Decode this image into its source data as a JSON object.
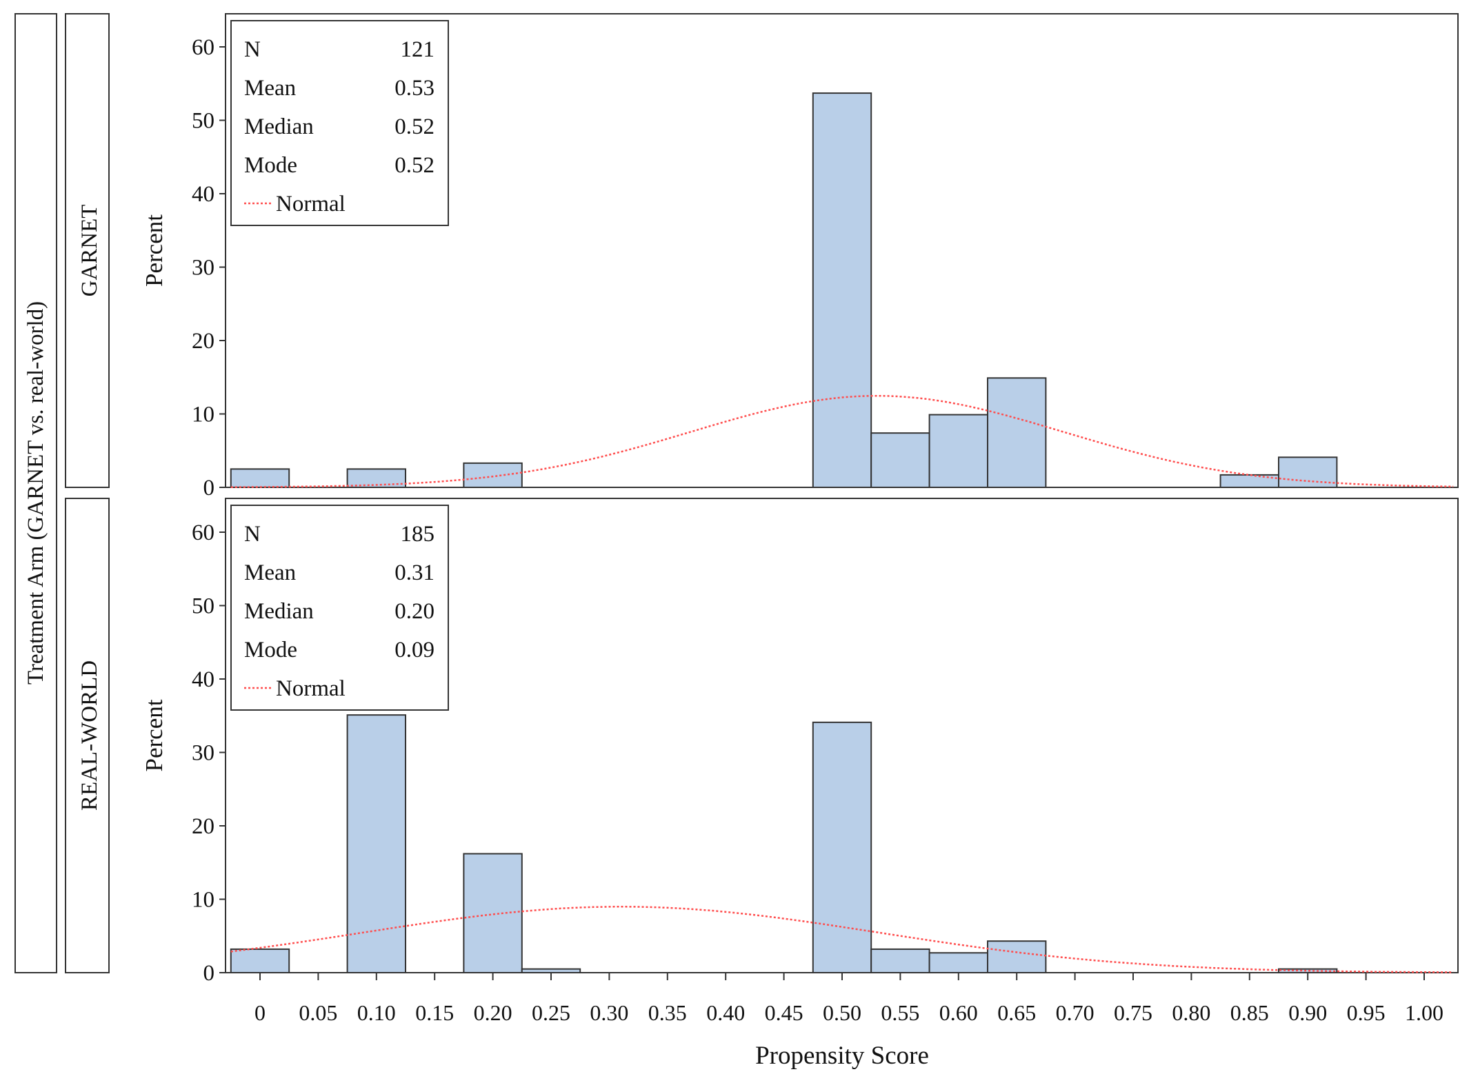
{
  "chart_data": {
    "type": "bar",
    "subtype": "histogram-panel",
    "xlabel": "Propensity Score",
    "ylabel": "Percent",
    "row_label": "Treatment Arm (GARNET vs. real-world)",
    "xlim": [
      -0.025,
      1.025
    ],
    "ylim": [
      0,
      65
    ],
    "bin_width": 0.05,
    "x_ticks": [
      "0",
      "0.05",
      "0.10",
      "0.15",
      "0.20",
      "0.25",
      "0.30",
      "0.35",
      "0.40",
      "0.45",
      "0.50",
      "0.55",
      "0.60",
      "0.65",
      "0.70",
      "0.75",
      "0.80",
      "0.85",
      "0.90",
      "0.95",
      "1.00"
    ],
    "y_ticks": [
      0,
      10,
      20,
      30,
      40,
      50,
      60
    ],
    "colors": {
      "bar_fill": "#b9cfe8",
      "bar_edge": "#333333",
      "normal_curve": "#ff4d4d"
    },
    "grid": false,
    "legend_placement": "top-left",
    "legend_curve_label": "Normal",
    "panels": [
      {
        "name": "GARNET",
        "stats": [
          {
            "label": "N",
            "value": "121"
          },
          {
            "label": "Mean",
            "value": "0.53"
          },
          {
            "label": "Median",
            "value": "0.52"
          },
          {
            "label": "Mode",
            "value": "0.52"
          }
        ],
        "bins": [
          0.0,
          0.1,
          0.2,
          0.5,
          0.55,
          0.6,
          0.65,
          0.85,
          0.9
        ],
        "values": [
          2.5,
          2.5,
          3.3,
          53.7,
          7.4,
          9.9,
          14.9,
          1.7,
          4.1
        ],
        "normal": {
          "mean": 0.53,
          "sd": 0.16
        }
      },
      {
        "name": "REAL-WORLD",
        "stats": [
          {
            "label": "N",
            "value": "185"
          },
          {
            "label": "Mean",
            "value": "0.31"
          },
          {
            "label": "Median",
            "value": "0.20"
          },
          {
            "label": "Mode",
            "value": "0.09"
          }
        ],
        "bins": [
          0.0,
          0.1,
          0.2,
          0.25,
          0.5,
          0.55,
          0.6,
          0.65,
          0.9
        ],
        "values": [
          3.2,
          35.1,
          16.2,
          0.5,
          34.1,
          3.2,
          2.7,
          4.3,
          0.5
        ],
        "normal": {
          "mean": 0.31,
          "sd": 0.222
        }
      }
    ]
  }
}
